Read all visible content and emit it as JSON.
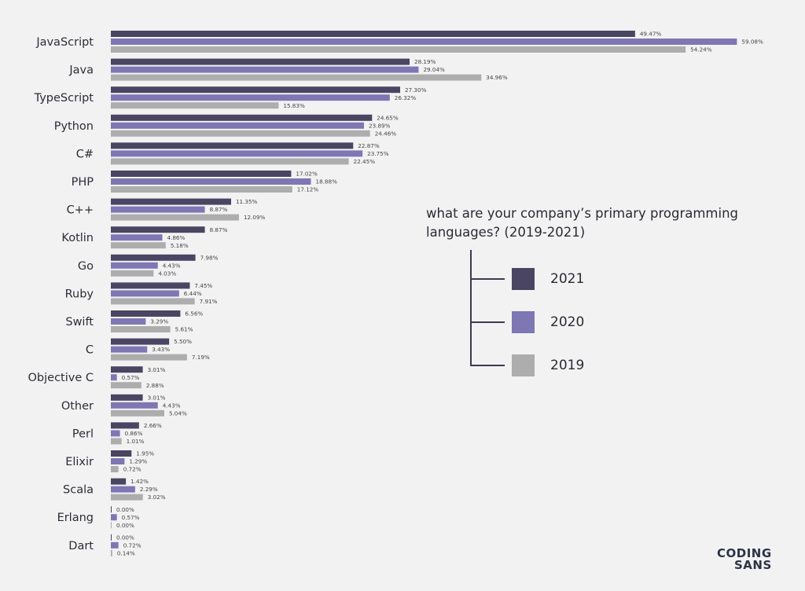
{
  "chart_data": {
    "type": "bar",
    "orientation": "horizontal",
    "categories": [
      "JavaScript",
      "Java",
      "TypeScript",
      "Python",
      "C#",
      "PHP",
      "C++",
      "Kotlin",
      "Go",
      "Ruby",
      "Swift",
      "C",
      "Objective C",
      "Other",
      "Perl",
      "Elixir",
      "Scala",
      "Erlang",
      "Dart"
    ],
    "series": [
      {
        "name": "2021",
        "color": "#4a4562",
        "values": [
          49.47,
          28.19,
          27.3,
          24.65,
          22.87,
          17.02,
          11.35,
          8.87,
          7.98,
          7.45,
          6.56,
          5.5,
          3.01,
          3.01,
          2.66,
          1.95,
          1.42,
          0.0,
          0.0
        ]
      },
      {
        "name": "2020",
        "color": "#7e77b3",
        "values": [
          59.08,
          29.04,
          26.32,
          23.89,
          23.75,
          18.88,
          8.87,
          4.86,
          4.43,
          6.44,
          3.29,
          3.43,
          0.57,
          4.43,
          0.86,
          1.29,
          2.29,
          0.57,
          0.72
        ]
      },
      {
        "name": "2019",
        "color": "#adadae",
        "values": [
          54.24,
          34.96,
          15.83,
          24.46,
          22.45,
          17.12,
          12.09,
          5.18,
          4.03,
          7.91,
          5.61,
          7.19,
          2.88,
          5.04,
          1.01,
          0.72,
          3.02,
          0.0,
          0.14
        ]
      }
    ],
    "value_labels": [
      [
        "49.47%",
        "59.08%",
        "54.24%"
      ],
      [
        "28.19%",
        "29.04%",
        "34.96%"
      ],
      [
        "27.30%",
        "26.32%",
        "15.83%"
      ],
      [
        "24.65%",
        "23.89%",
        "24.46%"
      ],
      [
        "22.87%",
        "23.75%",
        "22.45%"
      ],
      [
        "17.02%",
        "18.88%",
        "17.12%"
      ],
      [
        "11.35%",
        "8.87%",
        "12.09%"
      ],
      [
        "8.87%",
        "4.86%",
        "5.18%"
      ],
      [
        "7.98%",
        "4.43%",
        "4.03%"
      ],
      [
        "7.45%",
        "6.44%",
        "7.91%"
      ],
      [
        "6.56%",
        "3.29%",
        "5.61%"
      ],
      [
        "5.50%",
        "3.43%",
        "7.19%"
      ],
      [
        "3.01%",
        "0.57%",
        "2.88%"
      ],
      [
        "3.01%",
        "4.43%",
        "5.04%"
      ],
      [
        "2.66%",
        "0.86%",
        "1.01%"
      ],
      [
        "1.95%",
        "1.29%",
        "0.72%"
      ],
      [
        "1.42%",
        "2.29%",
        "3.02%"
      ],
      [
        "0.00%",
        "0.57%",
        "0.00%"
      ],
      [
        "0.00%",
        "0.72%",
        "0.14%"
      ]
    ],
    "title": "what are your company’s primary programming languages? (2019-2021)",
    "xlabel": "",
    "ylabel": "",
    "xlim": [
      0,
      60
    ],
    "grid": false,
    "legend_placement": "right"
  },
  "legend": {
    "title": "what are your company’s primary programming languages? (2019-2021)",
    "items": [
      {
        "label": "2021",
        "color": "#4a4562"
      },
      {
        "label": "2020",
        "color": "#7e77b3"
      },
      {
        "label": "2019",
        "color": "#adadae"
      }
    ]
  },
  "logo": {
    "line1": "CODING",
    "line2": "SANS"
  }
}
